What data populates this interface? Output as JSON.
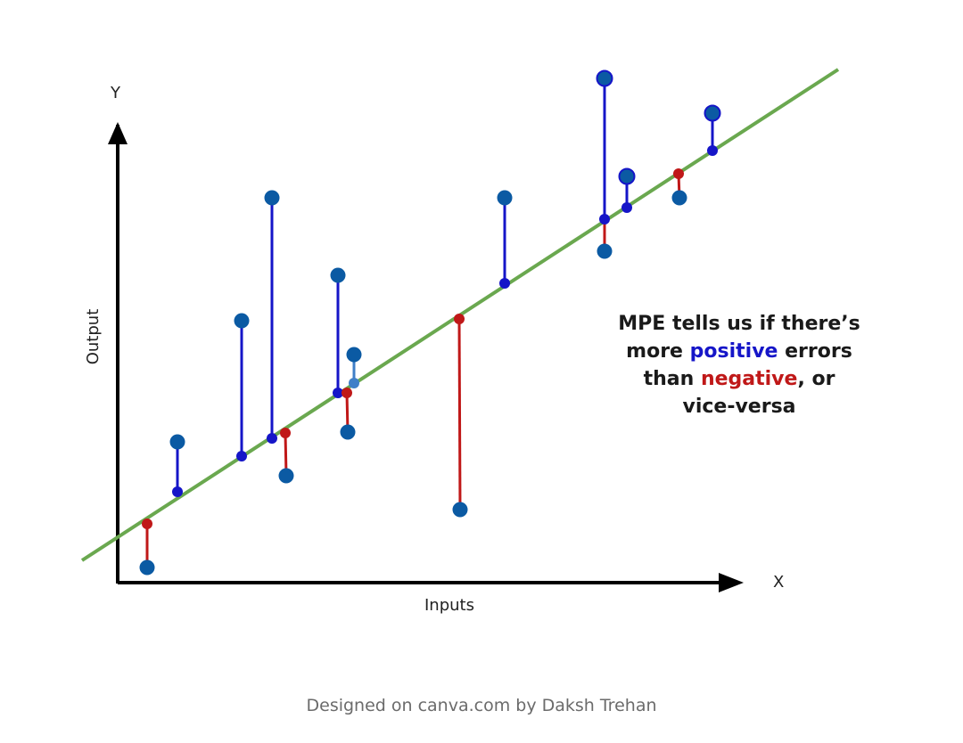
{
  "axes": {
    "y_letter": "Y",
    "x_letter": "X",
    "y_label": "Output",
    "x_label": "Inputs"
  },
  "annotation": {
    "line1": "MPE tells us if there’s",
    "line2_a": "more ",
    "line2_positive": "positive",
    "line2_b": " errors",
    "line3_a": "than ",
    "line3_negative": "negative",
    "line3_b": ", or",
    "line4": "vice-versa"
  },
  "caption": "Designed on canva.com by Daksh Trehan",
  "colors": {
    "positive": "#1515c8",
    "negative": "#c01818",
    "regression_line": "#6aa84f",
    "data_point": "#0b5aa3",
    "axis": "#000000"
  }
}
